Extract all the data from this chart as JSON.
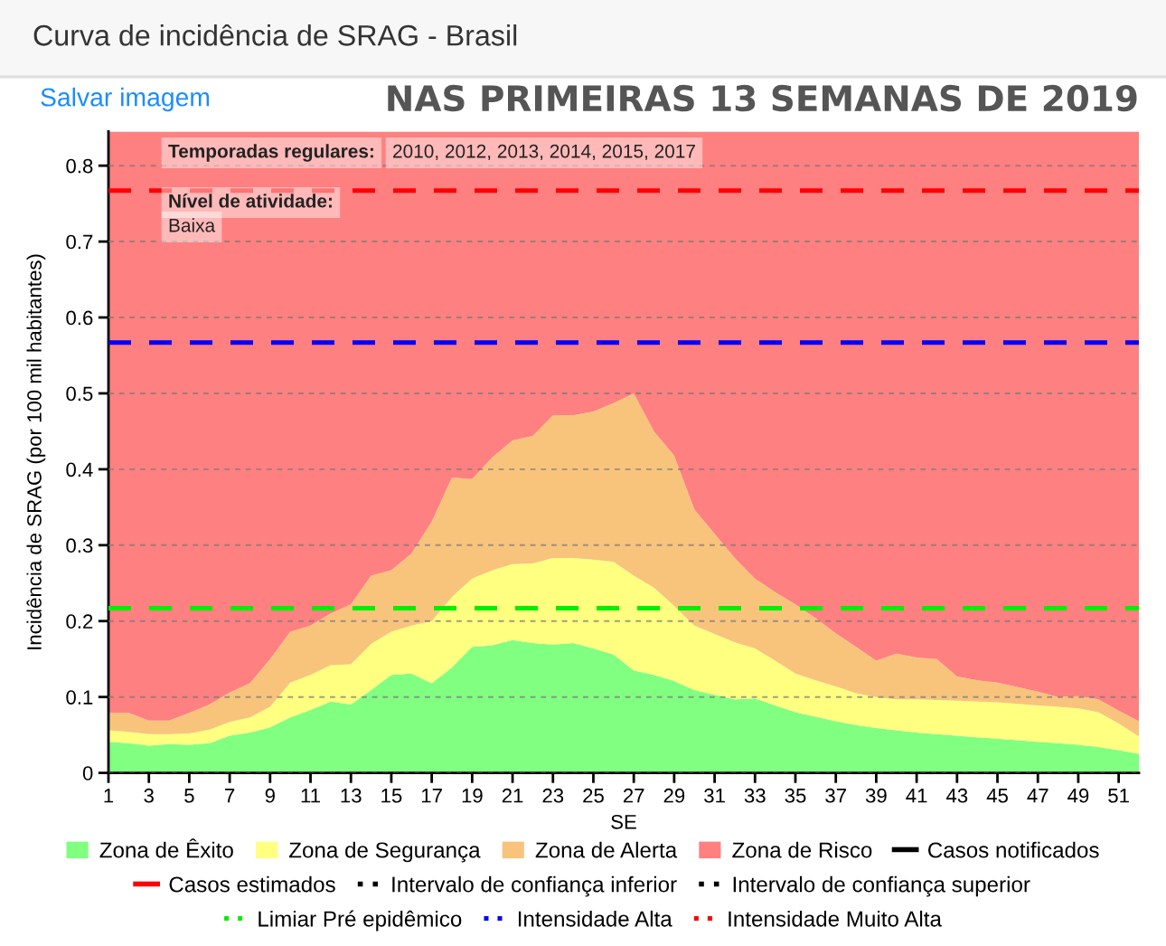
{
  "chart_data": {
    "type": "area",
    "title": "Curva de incidência de SRAG - Brasil",
    "xlabel": "SE",
    "ylabel": "Incidência de SRAG (por 100 mil habitantes)",
    "x": [
      1,
      2,
      3,
      4,
      5,
      6,
      7,
      8,
      9,
      10,
      11,
      12,
      13,
      14,
      15,
      16,
      17,
      18,
      19,
      20,
      21,
      22,
      23,
      24,
      25,
      26,
      27,
      28,
      29,
      30,
      31,
      32,
      33,
      34,
      35,
      36,
      37,
      38,
      39,
      40,
      41,
      42,
      43,
      44,
      45,
      46,
      47,
      48,
      49,
      50,
      51,
      52
    ],
    "stacked": true,
    "series": [
      {
        "name": "Zona de Êxito",
        "color": "#80ff80",
        "values": [
          0.041,
          0.039,
          0.036,
          0.038,
          0.037,
          0.039,
          0.049,
          0.053,
          0.06,
          0.073,
          0.083,
          0.094,
          0.09,
          0.109,
          0.129,
          0.131,
          0.118,
          0.139,
          0.166,
          0.168,
          0.175,
          0.171,
          0.169,
          0.171,
          0.164,
          0.156,
          0.135,
          0.129,
          0.121,
          0.109,
          0.103,
          0.097,
          0.098,
          0.089,
          0.08,
          0.074,
          0.068,
          0.063,
          0.059,
          0.056,
          0.053,
          0.051,
          0.049,
          0.047,
          0.045,
          0.043,
          0.041,
          0.039,
          0.037,
          0.034,
          0.03,
          0.025
        ]
      },
      {
        "name": "Zona de Segurança",
        "color": "#ffff80",
        "values": [
          0.015,
          0.015,
          0.015,
          0.013,
          0.015,
          0.018,
          0.018,
          0.02,
          0.027,
          0.046,
          0.046,
          0.048,
          0.053,
          0.061,
          0.057,
          0.063,
          0.082,
          0.093,
          0.09,
          0.099,
          0.1,
          0.105,
          0.114,
          0.112,
          0.117,
          0.122,
          0.125,
          0.115,
          0.099,
          0.085,
          0.08,
          0.075,
          0.066,
          0.059,
          0.051,
          0.048,
          0.046,
          0.042,
          0.041,
          0.041,
          0.044,
          0.045,
          0.046,
          0.047,
          0.048,
          0.048,
          0.048,
          0.048,
          0.048,
          0.046,
          0.035,
          0.023
        ]
      },
      {
        "name": "Zona de Alerta",
        "color": "#f8c47c",
        "values": [
          0.023,
          0.025,
          0.018,
          0.018,
          0.027,
          0.033,
          0.039,
          0.045,
          0.063,
          0.067,
          0.065,
          0.068,
          0.079,
          0.09,
          0.081,
          0.095,
          0.131,
          0.157,
          0.131,
          0.149,
          0.163,
          0.168,
          0.188,
          0.188,
          0.195,
          0.209,
          0.24,
          0.206,
          0.198,
          0.153,
          0.132,
          0.111,
          0.092,
          0.09,
          0.091,
          0.082,
          0.07,
          0.061,
          0.048,
          0.06,
          0.055,
          0.054,
          0.032,
          0.028,
          0.026,
          0.022,
          0.018,
          0.013,
          0.016,
          0.017,
          0.017,
          0.02
        ]
      },
      {
        "name": "Zona de Risco",
        "color": "#ff8080",
        "values": [
          0.766,
          0.766,
          0.776,
          0.776,
          0.766,
          0.755,
          0.739,
          0.727,
          0.695,
          0.659,
          0.651,
          0.635,
          0.623,
          0.585,
          0.578,
          0.556,
          0.514,
          0.456,
          0.458,
          0.429,
          0.407,
          0.401,
          0.374,
          0.374,
          0.369,
          0.358,
          0.345,
          0.395,
          0.427,
          0.498,
          0.53,
          0.562,
          0.589,
          0.607,
          0.623,
          0.641,
          0.661,
          0.679,
          0.697,
          0.688,
          0.693,
          0.695,
          0.718,
          0.723,
          0.726,
          0.732,
          0.738,
          0.745,
          0.744,
          0.748,
          0.763,
          0.777
        ]
      },
      {
        "name": "Casos notificados",
        "type": "line",
        "color": "#000000",
        "line_style": "solid",
        "values": [
          null,
          null,
          null,
          null,
          null,
          null,
          null,
          null,
          null,
          null,
          null,
          null,
          null,
          null,
          null,
          null,
          null,
          null,
          null,
          null,
          null,
          null,
          null,
          null,
          null,
          null,
          null,
          null,
          null,
          null,
          null,
          null,
          null,
          null,
          null,
          null,
          null,
          null,
          null,
          null,
          null,
          null,
          null,
          null,
          null,
          null,
          null,
          null,
          null,
          null,
          null,
          null
        ]
      },
      {
        "name": "Casos estimados",
        "type": "line",
        "color": "#ff0000",
        "line_style": "solid",
        "values": [
          null,
          null,
          null,
          null,
          null,
          null,
          null,
          null,
          null,
          null,
          null,
          null,
          null,
          null,
          null,
          null,
          null,
          null,
          null,
          null,
          null,
          null,
          null,
          null,
          null,
          null,
          null,
          null,
          null,
          null,
          null,
          null,
          null,
          null,
          null,
          null,
          null,
          null,
          null,
          null,
          null,
          null,
          null,
          null,
          null,
          null,
          null,
          null,
          null,
          null,
          null,
          null
        ]
      },
      {
        "name": "Intervalo de confiança inferior",
        "type": "line",
        "color": "#000000",
        "line_style": "dotted",
        "values": [
          null,
          null,
          null,
          null,
          null,
          null,
          null,
          null,
          null,
          null,
          null,
          null,
          null,
          null,
          null,
          null,
          null,
          null,
          null,
          null,
          null,
          null,
          null,
          null,
          null,
          null,
          null,
          null,
          null,
          null,
          null,
          null,
          null,
          null,
          null,
          null,
          null,
          null,
          null,
          null,
          null,
          null,
          null,
          null,
          null,
          null,
          null,
          null,
          null,
          null,
          null,
          null
        ]
      },
      {
        "name": "Intervalo de confiança superior",
        "type": "line",
        "color": "#000000",
        "line_style": "dotted",
        "values": [
          null,
          null,
          null,
          null,
          null,
          null,
          null,
          null,
          null,
          null,
          null,
          null,
          null,
          null,
          null,
          null,
          null,
          null,
          null,
          null,
          null,
          null,
          null,
          null,
          null,
          null,
          null,
          null,
          null,
          null,
          null,
          null,
          null,
          null,
          null,
          null,
          null,
          null,
          null,
          null,
          null,
          null,
          null,
          null,
          null,
          null,
          null,
          null,
          null,
          null,
          null,
          null
        ]
      }
    ],
    "ref_lines": [
      {
        "axis": "y",
        "value": 0.217,
        "label": "Limiar Pré epidêmico",
        "color": "#00ee00",
        "line_style": "dashed"
      },
      {
        "axis": "y",
        "value": 0.567,
        "label": "Intensidade Alta",
        "color": "#0000ff",
        "line_style": "dashed"
      },
      {
        "axis": "y",
        "value": 0.767,
        "label": "Intensidade Muito Alta",
        "color": "#ff0000",
        "line_style": "dashed"
      }
    ],
    "xlim": [
      1,
      52
    ],
    "xticks": [
      1,
      3,
      5,
      7,
      9,
      11,
      13,
      15,
      17,
      19,
      21,
      23,
      25,
      27,
      29,
      31,
      33,
      35,
      37,
      39,
      41,
      43,
      45,
      47,
      49,
      51
    ],
    "ylim": [
      0,
      0.845
    ],
    "yticks": [
      0,
      0.1,
      0.2,
      0.3,
      0.4,
      0.5,
      0.6,
      0.7,
      0.8
    ],
    "grid": "y",
    "legend": "bottom",
    "annotations": [
      "Salvar imagem",
      "Temporadas regulares:",
      "2010, 2012, 2013, 2014, 2015, 2017",
      "Nível de atividade:",
      "Baixa",
      "NAS PRIMEIRAS 13 SEMANAS DE 2019"
    ]
  }
}
